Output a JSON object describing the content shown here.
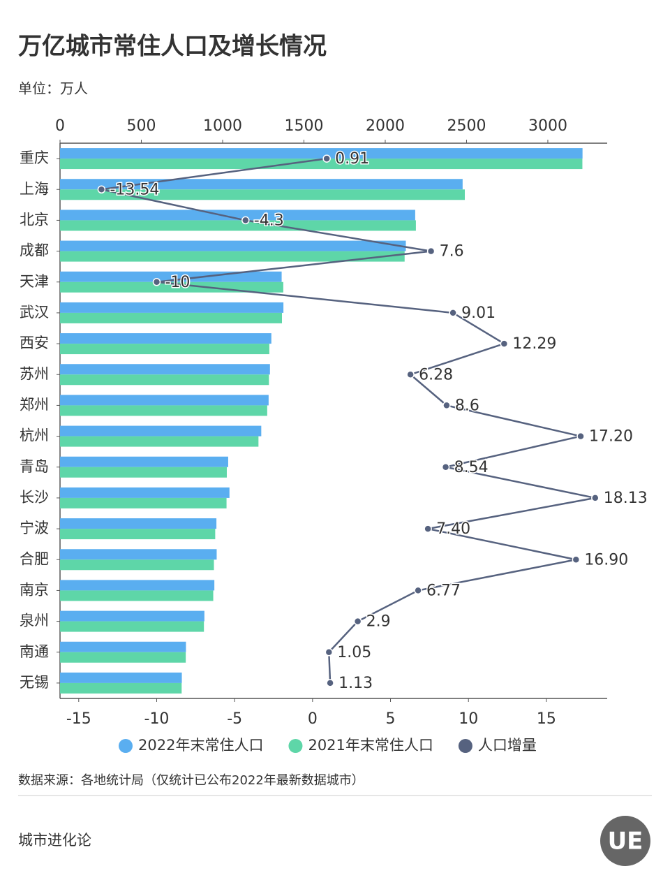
{
  "chart_data": {
    "type": "bar",
    "orientation": "horizontal",
    "title": "万亿城市常住人口及增长情况",
    "unit": "单位：万人",
    "categories": [
      "重庆",
      "上海",
      "北京",
      "成都",
      "天津",
      "武汉",
      "西安",
      "苏州",
      "郑州",
      "杭州",
      "青岛",
      "长沙",
      "宁波",
      "合肥",
      "南京",
      "泉州",
      "南通",
      "无锡"
    ],
    "series": [
      {
        "name": "2022年末常住人口",
        "color": "#5aaef0",
        "values": [
          3213.3,
          2475.9,
          2184.3,
          2126.8,
          1363.0,
          1373.9,
          1299.6,
          1291.1,
          1282.8,
          1237.6,
          1034.2,
          1042.1,
          961.8,
          963.4,
          949.1,
          887.9,
          774.4,
          749.1
        ]
      },
      {
        "name": "2021年末常住人口",
        "color": "#5ed6a8",
        "values": [
          3212.4,
          2489.4,
          2188.6,
          2119.2,
          1373.0,
          1364.9,
          1287.3,
          1284.8,
          1274.2,
          1220.4,
          1025.7,
          1024.0,
          954.4,
          946.5,
          942.3,
          885.0,
          773.3,
          748.0
        ]
      },
      {
        "name": "人口增量",
        "type": "line",
        "axis": "x2",
        "color": "#56627f",
        "values": [
          0.91,
          -13.54,
          -4.3,
          7.6,
          -10,
          9.01,
          12.29,
          6.28,
          8.6,
          17.2,
          8.54,
          18.13,
          7.4,
          16.9,
          6.77,
          2.9,
          1.05,
          1.13
        ],
        "value_labels": [
          "0.91",
          "-13.54",
          "-4.3",
          "7.6",
          "-10",
          "9.01",
          "12.29",
          "6.28",
          "8.6",
          "17.20",
          "8.54",
          "18.13",
          "7.40",
          "16.90",
          "6.77",
          "2.9",
          "1.05",
          "1.13"
        ]
      }
    ],
    "xlim": [
      0,
      3365
    ],
    "xticks": [
      0,
      500,
      1000,
      1500,
      2000,
      2500,
      3000
    ],
    "x2lim": [
      -16.2,
      18.9
    ],
    "x2ticks": [
      -15,
      -10,
      -5,
      0,
      5,
      10,
      15
    ],
    "legend": "bottom"
  },
  "source": "数据来源：各地统计局（仅统计已公布2022年最新数据城市）",
  "footer": "城市进化论",
  "logo": "UE"
}
